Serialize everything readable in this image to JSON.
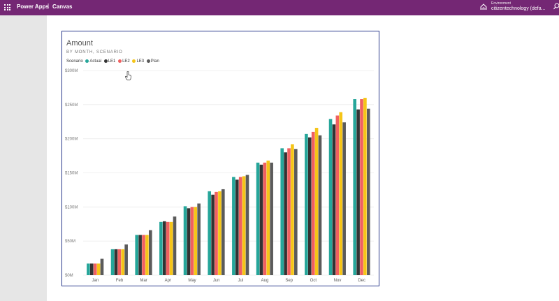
{
  "header": {
    "app_name": "Power Apps",
    "separator": "|",
    "mode": "Canvas",
    "environment_label": "Environment",
    "environment_name": "citizentechnology (defa...",
    "bg_color": "#742774"
  },
  "icons": [
    "waffle-icon",
    "environment-icon",
    "search-icon",
    "pointer-hand-icon"
  ],
  "chart_data": {
    "type": "bar",
    "title": "Amount",
    "subtitle": "BY MONTH, SCENARIO",
    "legend_title": "Scenario",
    "legend_placement": "top-left",
    "categories": [
      "Jan",
      "Feb",
      "Mar",
      "Apr",
      "May",
      "Jun",
      "Jul",
      "Aug",
      "Sep",
      "Oct",
      "Nov",
      "Dec"
    ],
    "y_ticks": [
      "$0M",
      "$50M",
      "$100M",
      "$150M",
      "$200M",
      "$250M",
      "$300M"
    ],
    "ylim": [
      0,
      300
    ],
    "grid": true,
    "series": [
      {
        "name": "Actual",
        "color": "#26a69a",
        "values": [
          17,
          38,
          59,
          78,
          101,
          123,
          144,
          165,
          186,
          207,
          229,
          258
        ]
      },
      {
        "name": "LE1",
        "color": "#333333",
        "values": [
          17,
          38,
          59,
          79,
          98,
          118,
          140,
          162,
          180,
          202,
          221,
          243
        ]
      },
      {
        "name": "LE2",
        "color": "#f06060",
        "values": [
          17,
          38,
          59,
          78,
          100,
          122,
          144,
          165,
          186,
          210,
          234,
          258
        ]
      },
      {
        "name": "LE3",
        "color": "#f5c518",
        "values": [
          17,
          38,
          59,
          78,
          100,
          123,
          145,
          168,
          192,
          216,
          239,
          260
        ]
      },
      {
        "name": "Plan",
        "color": "#5b5b5b",
        "values": [
          24,
          45,
          66,
          86,
          105,
          126,
          147,
          165,
          185,
          205,
          224,
          244
        ]
      }
    ]
  }
}
